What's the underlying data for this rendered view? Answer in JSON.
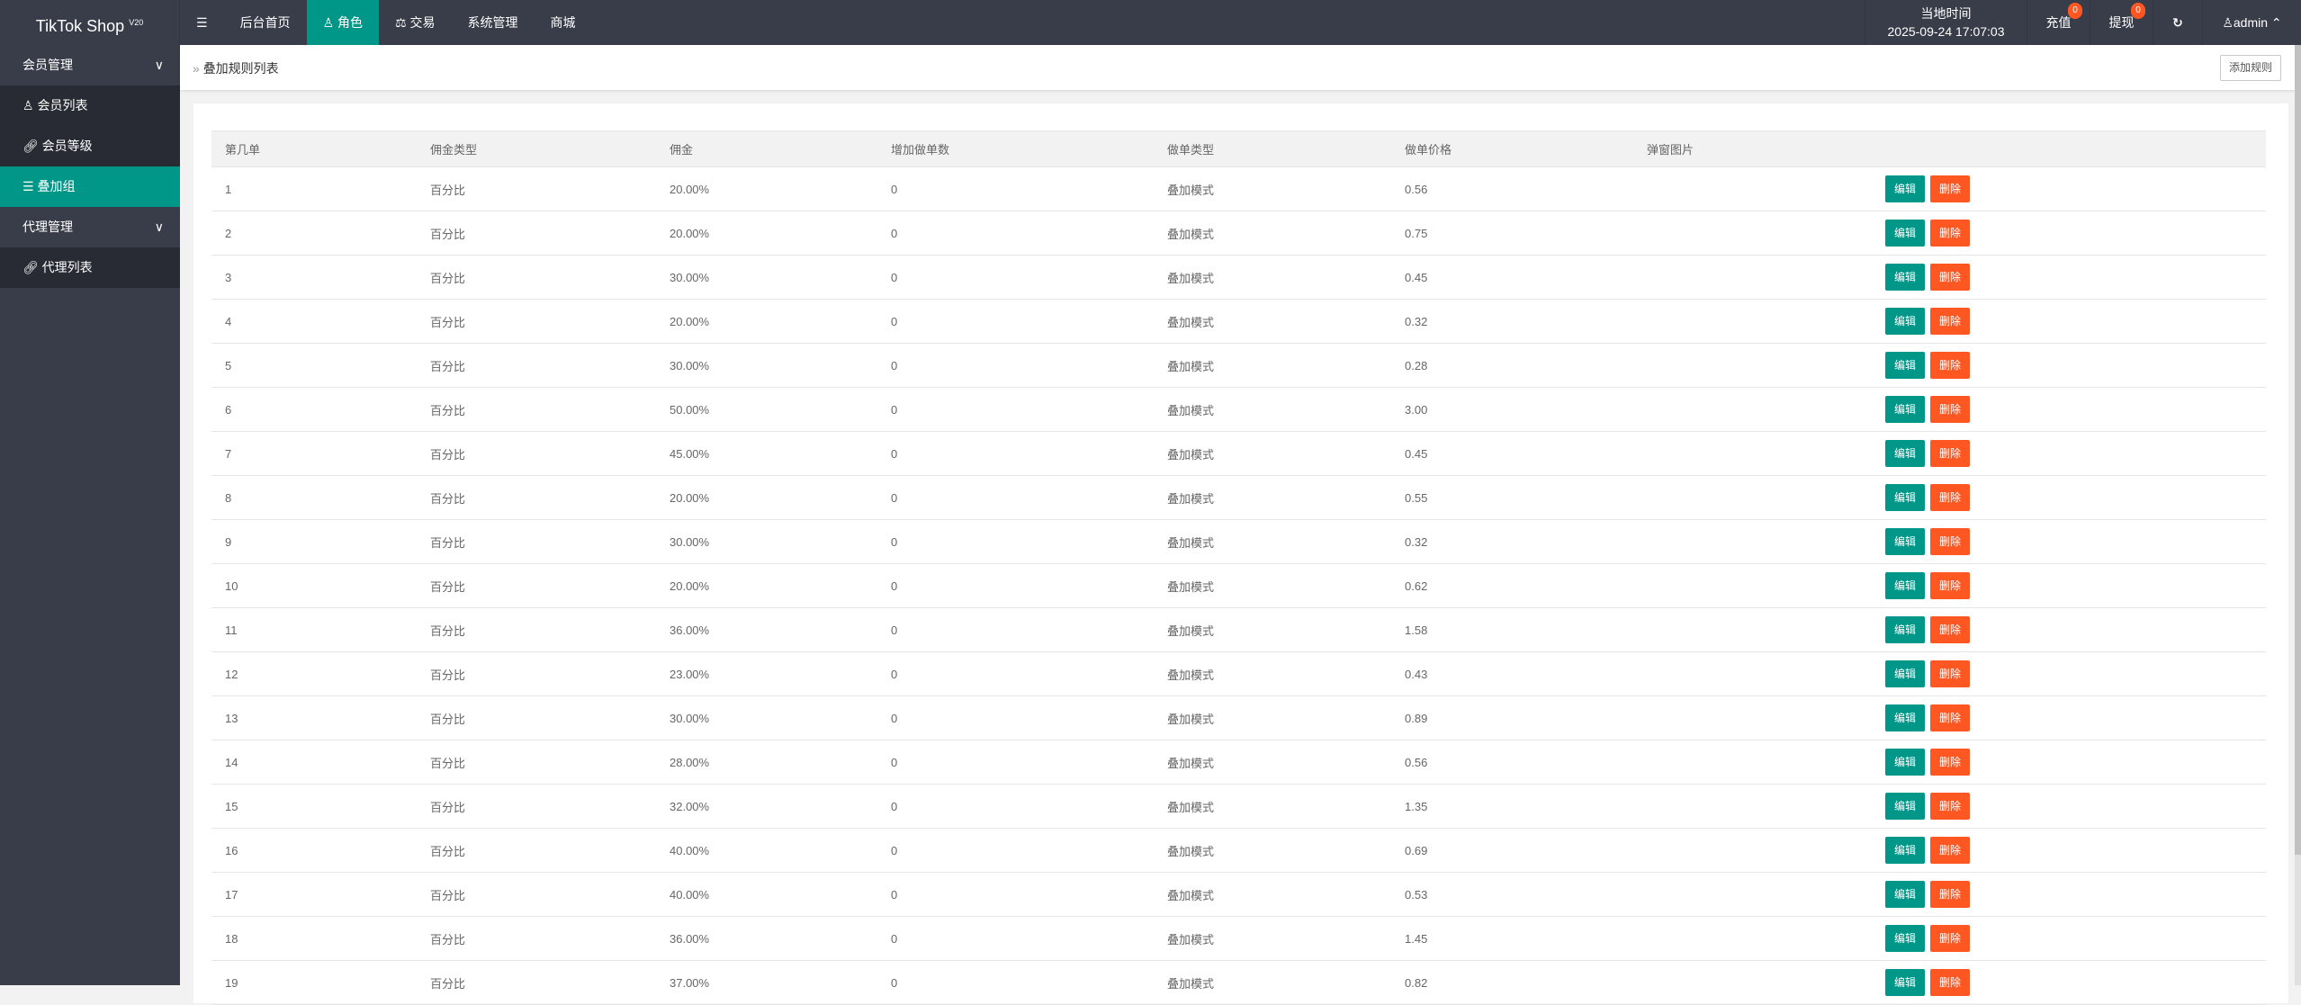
{
  "header": {
    "logo": "TikTok Shop",
    "version": "V20",
    "menu_icon": "hamburger-icon",
    "nav": [
      {
        "label": "后台首页",
        "icon": ""
      },
      {
        "label": "角色",
        "icon": "user-icon",
        "active": true
      },
      {
        "label": "交易",
        "icon": "scale-icon"
      },
      {
        "label": "系统管理",
        "icon": ""
      },
      {
        "label": "商城",
        "icon": ""
      }
    ],
    "time_label": "当地时间",
    "time_value": "2025-09-24 17:07:03",
    "recharge": {
      "label": "充值",
      "count": "0"
    },
    "withdraw": {
      "label": "提现",
      "count": "0"
    },
    "user": "admin"
  },
  "sidebar": {
    "groups": [
      {
        "label": "会员管理",
        "items": [
          {
            "label": "会员列表",
            "icon": "user-icon"
          },
          {
            "label": "会员等级",
            "icon": "link-icon"
          },
          {
            "label": "叠加组",
            "icon": "list-icon",
            "active": true
          }
        ]
      },
      {
        "label": "代理管理",
        "items": [
          {
            "label": "代理列表",
            "icon": "link-icon"
          }
        ]
      }
    ]
  },
  "breadcrumb": {
    "title": "叠加规则列表",
    "add_button": "添加规则"
  },
  "table": {
    "columns": [
      "第几单",
      "佣金类型",
      "佣金",
      "增加做单数",
      "做单类型",
      "做单价格",
      "弹窗图片",
      ""
    ],
    "edit_label": "编辑",
    "delete_label": "删除",
    "rows": [
      [
        "1",
        "百分比",
        "20.00%",
        "0",
        "叠加模式",
        "0.56"
      ],
      [
        "2",
        "百分比",
        "20.00%",
        "0",
        "叠加模式",
        "0.75"
      ],
      [
        "3",
        "百分比",
        "30.00%",
        "0",
        "叠加模式",
        "0.45"
      ],
      [
        "4",
        "百分比",
        "20.00%",
        "0",
        "叠加模式",
        "0.32"
      ],
      [
        "5",
        "百分比",
        "30.00%",
        "0",
        "叠加模式",
        "0.28"
      ],
      [
        "6",
        "百分比",
        "50.00%",
        "0",
        "叠加模式",
        "3.00"
      ],
      [
        "7",
        "百分比",
        "45.00%",
        "0",
        "叠加模式",
        "0.45"
      ],
      [
        "8",
        "百分比",
        "20.00%",
        "0",
        "叠加模式",
        "0.55"
      ],
      [
        "9",
        "百分比",
        "30.00%",
        "0",
        "叠加模式",
        "0.32"
      ],
      [
        "10",
        "百分比",
        "20.00%",
        "0",
        "叠加模式",
        "0.62"
      ],
      [
        "11",
        "百分比",
        "36.00%",
        "0",
        "叠加模式",
        "1.58"
      ],
      [
        "12",
        "百分比",
        "23.00%",
        "0",
        "叠加模式",
        "0.43"
      ],
      [
        "13",
        "百分比",
        "30.00%",
        "0",
        "叠加模式",
        "0.89"
      ],
      [
        "14",
        "百分比",
        "28.00%",
        "0",
        "叠加模式",
        "0.56"
      ],
      [
        "15",
        "百分比",
        "32.00%",
        "0",
        "叠加模式",
        "1.35"
      ],
      [
        "16",
        "百分比",
        "40.00%",
        "0",
        "叠加模式",
        "0.69"
      ],
      [
        "17",
        "百分比",
        "40.00%",
        "0",
        "叠加模式",
        "0.53"
      ],
      [
        "18",
        "百分比",
        "36.00%",
        "0",
        "叠加模式",
        "1.45"
      ],
      [
        "19",
        "百分比",
        "37.00%",
        "0",
        "叠加模式",
        "0.82"
      ]
    ]
  }
}
